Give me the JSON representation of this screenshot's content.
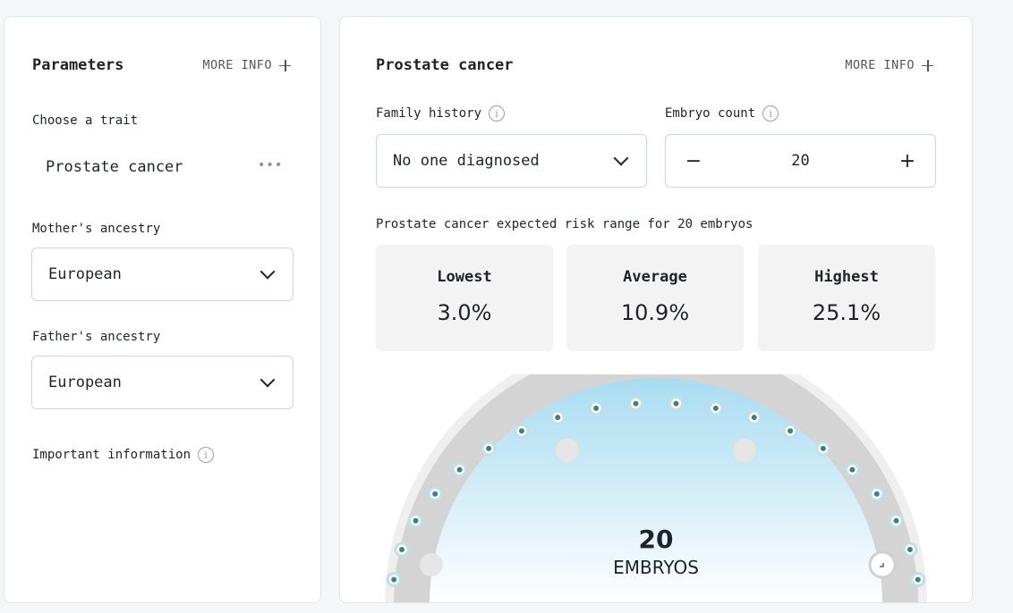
{
  "left": {
    "title": "Parameters",
    "more_info": "MORE INFO",
    "trait_label": "Choose a trait",
    "trait_value": "Prostate cancer",
    "mother_label": "Mother's ancestry",
    "mother_value": "European",
    "father_label": "Father's ancestry",
    "father_value": "European",
    "important_label": "Important information"
  },
  "right": {
    "title": "Prostate cancer",
    "more_info": "MORE INFO",
    "family_label": "Family history",
    "family_value": "No one diagnosed",
    "embryo_label": "Embryo count",
    "embryo_value": "20",
    "range_label": "Prostate cancer expected risk range for 20 embryos",
    "stats": [
      {
        "name": "Lowest",
        "value": "3.0%"
      },
      {
        "name": "Average",
        "value": "10.9%"
      },
      {
        "name": "Highest",
        "value": "25.1%"
      }
    ],
    "gauge_count": "20",
    "gauge_unit": "EMBRYOS",
    "dot_count": 20,
    "colors": {
      "dot_fill": "#3f7f86",
      "dot_ring": "#bfe0e6",
      "track": "#d4d4d4",
      "dome_top": "#a9dcf1"
    }
  }
}
